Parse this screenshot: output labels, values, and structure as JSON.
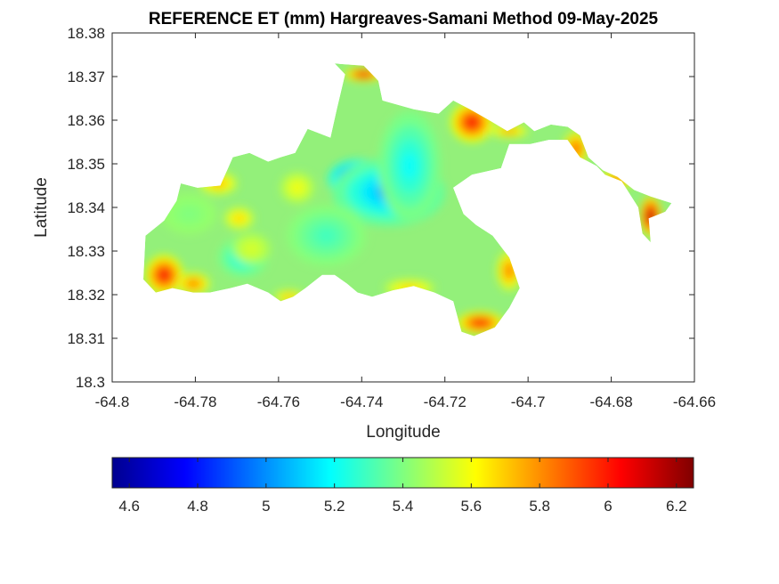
{
  "chart_data": {
    "type": "heatmap",
    "title": "REFERENCE ET (mm) Hargreaves-Samani Method  09-May-2025",
    "xlabel": "Longitude",
    "ylabel": "Latitude",
    "xlim": [
      -64.8,
      -64.66
    ],
    "ylim": [
      18.3,
      18.38
    ],
    "xticks": [
      -64.8,
      -64.78,
      -64.76,
      -64.74,
      -64.72,
      -64.7,
      -64.68,
      -64.66
    ],
    "xtick_labels": [
      "-64.8",
      "-64.78",
      "-64.76",
      "-64.74",
      "-64.72",
      "-64.7",
      "-64.68",
      "-64.66"
    ],
    "yticks": [
      18.3,
      18.31,
      18.32,
      18.33,
      18.34,
      18.35,
      18.36,
      18.37,
      18.38
    ],
    "ytick_labels": [
      "18.3",
      "18.31",
      "18.32",
      "18.33",
      "18.34",
      "18.35",
      "18.36",
      "18.37",
      "18.38"
    ],
    "colormap": "jet",
    "colorbar": {
      "location": "bottom",
      "range": [
        4.55,
        6.25
      ],
      "ticks": [
        4.6,
        4.8,
        5.0,
        5.2,
        5.4,
        5.6,
        5.8,
        6.0,
        6.2
      ],
      "tick_labels": [
        "4.6",
        "4.8",
        "5",
        "5.2",
        "5.4",
        "5.6",
        "5.8",
        "6",
        "6.2"
      ]
    },
    "outline": [
      [
        -64.7915,
        18.3225
      ],
      [
        -64.7925,
        18.3235
      ],
      [
        -64.792,
        18.3335
      ],
      [
        -64.7875,
        18.337
      ],
      [
        -64.7845,
        18.3415
      ],
      [
        -64.7835,
        18.3455
      ],
      [
        -64.7795,
        18.3445
      ],
      [
        -64.774,
        18.345
      ],
      [
        -64.771,
        18.3515
      ],
      [
        -64.767,
        18.3525
      ],
      [
        -64.7625,
        18.3505
      ],
      [
        -64.7595,
        18.3515
      ],
      [
        -64.756,
        18.3525
      ],
      [
        -64.753,
        18.358
      ],
      [
        -64.7475,
        18.356
      ],
      [
        -64.746,
        18.3625
      ],
      [
        -64.744,
        18.3705
      ],
      [
        -64.7465,
        18.373
      ],
      [
        -64.7395,
        18.3725
      ],
      [
        -64.736,
        18.369
      ],
      [
        -64.735,
        18.3645
      ],
      [
        -64.7275,
        18.3625
      ],
      [
        -64.7215,
        18.3615
      ],
      [
        -64.718,
        18.3645
      ],
      [
        -64.714,
        18.3625
      ],
      [
        -64.7085,
        18.3595
      ],
      [
        -64.705,
        18.3575
      ],
      [
        -64.701,
        18.3595
      ],
      [
        -64.6985,
        18.3575
      ],
      [
        -64.6945,
        18.359
      ],
      [
        -64.6905,
        18.3585
      ],
      [
        -64.6875,
        18.3565
      ],
      [
        -64.6855,
        18.3515
      ],
      [
        -64.682,
        18.3485
      ],
      [
        -64.6785,
        18.347
      ],
      [
        -64.6745,
        18.344
      ],
      [
        -64.6705,
        18.3425
      ],
      [
        -64.6655,
        18.341
      ],
      [
        -64.667,
        18.339
      ],
      [
        -64.671,
        18.3375
      ],
      [
        -64.6705,
        18.332
      ],
      [
        -64.6725,
        18.334
      ],
      [
        -64.6735,
        18.34
      ],
      [
        -64.6775,
        18.346
      ],
      [
        -64.6815,
        18.3475
      ],
      [
        -64.6835,
        18.3495
      ],
      [
        -64.6875,
        18.3515
      ],
      [
        -64.6905,
        18.3555
      ],
      [
        -64.695,
        18.3555
      ],
      [
        -64.6995,
        18.3545
      ],
      [
        -64.7045,
        18.3545
      ],
      [
        -64.7065,
        18.349
      ],
      [
        -64.7135,
        18.3475
      ],
      [
        -64.718,
        18.3445
      ],
      [
        -64.7155,
        18.3385
      ],
      [
        -64.7125,
        18.336
      ],
      [
        -64.7085,
        18.3335
      ],
      [
        -64.7045,
        18.3285
      ],
      [
        -64.702,
        18.3215
      ],
      [
        -64.7045,
        18.317
      ],
      [
        -64.708,
        18.3125
      ],
      [
        -64.713,
        18.3105
      ],
      [
        -64.716,
        18.3115
      ],
      [
        -64.718,
        18.3185
      ],
      [
        -64.7225,
        18.3205
      ],
      [
        -64.7275,
        18.322
      ],
      [
        -64.7325,
        18.321
      ],
      [
        -64.7375,
        18.3195
      ],
      [
        -64.741,
        18.3205
      ],
      [
        -64.7435,
        18.3225
      ],
      [
        -64.7465,
        18.3245
      ],
      [
        -64.7495,
        18.3245
      ],
      [
        -64.7535,
        18.3215
      ],
      [
        -64.7565,
        18.3195
      ],
      [
        -64.7595,
        18.3185
      ],
      [
        -64.7625,
        18.3205
      ],
      [
        -64.7675,
        18.3225
      ],
      [
        -64.7715,
        18.3215
      ],
      [
        -64.7765,
        18.3205
      ],
      [
        -64.7805,
        18.3205
      ],
      [
        -64.7855,
        18.3215
      ],
      [
        -64.7895,
        18.3205
      ]
    ],
    "contours": [
      {
        "lon": -64.7405,
        "lat": 18.3465,
        "rx": 0.0075,
        "ry": 0.0045,
        "value": 4.6
      },
      {
        "lon": -64.7285,
        "lat": 18.3425,
        "rx": 0.0055,
        "ry": 0.0043,
        "value": 4.65
      },
      {
        "lon": -64.7355,
        "lat": 18.3445,
        "rx": 0.011,
        "ry": 0.0062,
        "value": 4.85
      },
      {
        "lon": -64.7335,
        "lat": 18.3435,
        "rx": 0.0135,
        "ry": 0.0078,
        "value": 5.05
      },
      {
        "lon": -64.7285,
        "lat": 18.3495,
        "rx": 0.0075,
        "ry": 0.0125,
        "value": 5.2
      },
      {
        "lon": -64.7685,
        "lat": 18.3285,
        "rx": 0.006,
        "ry": 0.0045,
        "value": 5.2
      },
      {
        "lon": -64.7485,
        "lat": 18.3335,
        "rx": 0.0095,
        "ry": 0.007,
        "value": 5.3
      },
      {
        "lon": -64.7815,
        "lat": 18.3385,
        "rx": 0.0065,
        "ry": 0.0045,
        "value": 5.4
      },
      {
        "lon": -64.7665,
        "lat": 18.3305,
        "rx": 0.0045,
        "ry": 0.0035,
        "value": 5.55
      },
      {
        "lon": -64.7695,
        "lat": 18.3375,
        "rx": 0.0035,
        "ry": 0.0025,
        "value": 5.7
      },
      {
        "lon": -64.7555,
        "lat": 18.3445,
        "rx": 0.004,
        "ry": 0.0035,
        "value": 5.6
      },
      {
        "lon": -64.7875,
        "lat": 18.3245,
        "rx": 0.0045,
        "ry": 0.0045,
        "value": 6.05
      },
      {
        "lon": -64.7805,
        "lat": 18.3225,
        "rx": 0.004,
        "ry": 0.0025,
        "value": 5.85
      },
      {
        "lon": -64.7135,
        "lat": 18.3595,
        "rx": 0.005,
        "ry": 0.0045,
        "value": 6.05
      },
      {
        "lon": -64.7045,
        "lat": 18.3575,
        "rx": 0.0045,
        "ry": 0.0015,
        "value": 5.8
      },
      {
        "lon": -64.6885,
        "lat": 18.3535,
        "rx": 0.003,
        "ry": 0.004,
        "value": 5.9
      },
      {
        "lon": -64.6785,
        "lat": 18.3465,
        "rx": 0.0045,
        "ry": 0.002,
        "value": 5.85
      },
      {
        "lon": -64.6705,
        "lat": 18.338,
        "rx": 0.0025,
        "ry": 0.0045,
        "value": 6.25
      },
      {
        "lon": -64.7115,
        "lat": 18.3135,
        "rx": 0.0055,
        "ry": 0.0025,
        "value": 6.05
      },
      {
        "lon": -64.7045,
        "lat": 18.3255,
        "rx": 0.003,
        "ry": 0.0045,
        "value": 5.85
      },
      {
        "lon": -64.7395,
        "lat": 18.3705,
        "rx": 0.0045,
        "ry": 0.0015,
        "value": 6.1
      },
      {
        "lon": -64.7745,
        "lat": 18.3455,
        "rx": 0.0045,
        "ry": 0.0025,
        "value": 5.75
      },
      {
        "lon": -64.7575,
        "lat": 18.3195,
        "rx": 0.0035,
        "ry": 0.0015,
        "value": 5.75
      },
      {
        "lon": -64.7285,
        "lat": 18.3215,
        "rx": 0.006,
        "ry": 0.002,
        "value": 5.7
      }
    ]
  }
}
